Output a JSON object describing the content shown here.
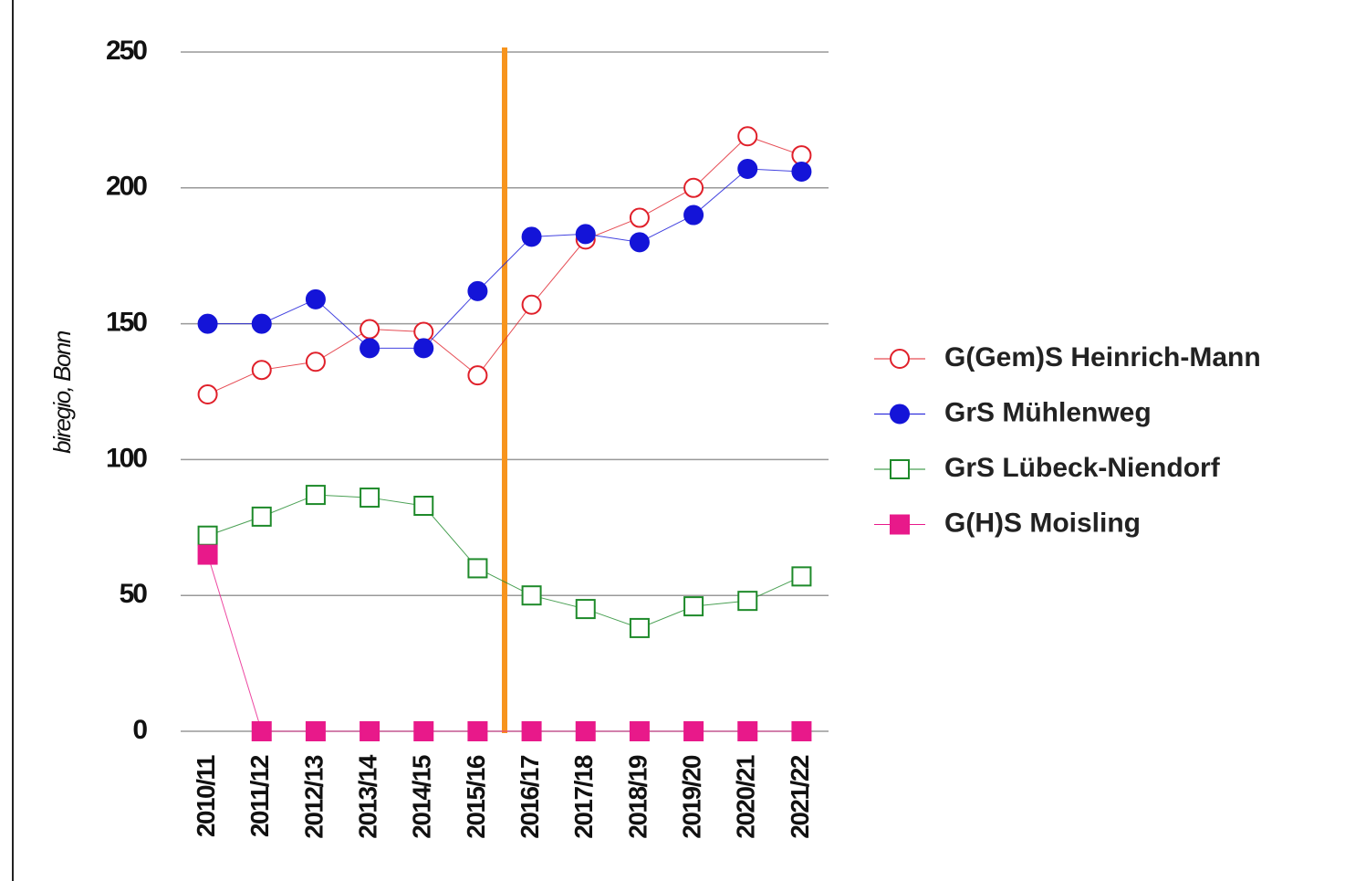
{
  "chart_data": {
    "type": "line",
    "y_label": "biregio, Bonn",
    "categories": [
      "2010/11",
      "2011/12",
      "2012/13",
      "2013/14",
      "2014/15",
      "2015/16",
      "2016/17",
      "2017/18",
      "2018/19",
      "2019/20",
      "2020/21",
      "2021/22"
    ],
    "ylim": [
      0,
      250
    ],
    "yticks": [
      0,
      50,
      100,
      150,
      200,
      250
    ],
    "grid": true,
    "legend": "right",
    "series": [
      {
        "name": "G(Gem)S Heinrich-Mann",
        "color": "#e0202a",
        "marker": "circle",
        "filled": false,
        "values": [
          124,
          133,
          136,
          148,
          147,
          131,
          157,
          181,
          189,
          200,
          219,
          212
        ]
      },
      {
        "name": "GrS Mühlenweg",
        "color": "#1414d8",
        "marker": "circle",
        "filled": true,
        "values": [
          150,
          150,
          159,
          141,
          141,
          162,
          182,
          183,
          180,
          190,
          207,
          206
        ]
      },
      {
        "name": "GrS Lübeck-Niendorf",
        "color": "#1e8a2a",
        "marker": "square",
        "filled": false,
        "values": [
          72,
          79,
          87,
          86,
          83,
          60,
          50,
          45,
          38,
          46,
          48,
          57
        ]
      },
      {
        "name": "G(H)S Moisling",
        "color": "#e8198a",
        "marker": "square",
        "filled": true,
        "values": [
          65,
          0,
          0,
          0,
          0,
          0,
          0,
          0,
          0,
          0,
          0,
          0
        ]
      }
    ]
  }
}
